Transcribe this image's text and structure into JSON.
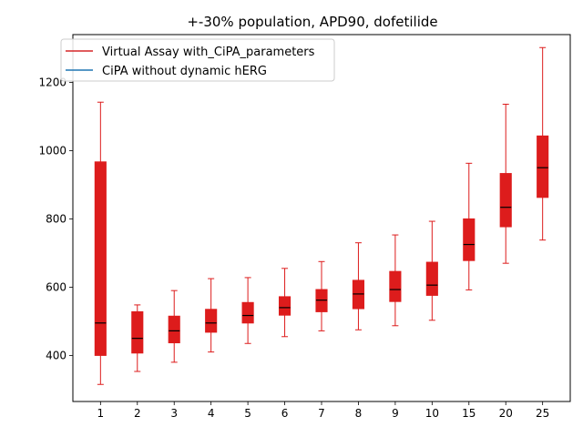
{
  "chart_data": {
    "type": "box",
    "title": "+-30% population, APD90, dofetilide",
    "xlabel": "",
    "ylabel": "",
    "categories": [
      "1",
      "2",
      "3",
      "4",
      "5",
      "6",
      "7",
      "8",
      "9",
      "10",
      "15",
      "20",
      "25"
    ],
    "ylim": [
      265,
      1340
    ],
    "yticks": [
      400,
      600,
      800,
      1000,
      1200
    ],
    "grid": false,
    "legend_position": "top-left",
    "legend": [
      {
        "label": "Virtual Assay with_CiPA_parameters",
        "color": "#d62728"
      },
      {
        "label": "CiPA without dynamic hERG",
        "color": "#1f77b4"
      }
    ],
    "box_color": "#dd1c1c",
    "whisker_color": "#dd1c1c",
    "median_color": "#000000",
    "series": [
      {
        "boxes": [
          {
            "min": 315,
            "q1": 400,
            "median": 495,
            "q3": 967,
            "max": 1142
          },
          {
            "min": 353,
            "q1": 407,
            "median": 450,
            "q3": 528,
            "max": 548
          },
          {
            "min": 380,
            "q1": 437,
            "median": 472,
            "q3": 515,
            "max": 590
          },
          {
            "min": 410,
            "q1": 468,
            "median": 495,
            "q3": 535,
            "max": 625
          },
          {
            "min": 435,
            "q1": 495,
            "median": 517,
            "q3": 555,
            "max": 628
          },
          {
            "min": 455,
            "q1": 518,
            "median": 540,
            "q3": 572,
            "max": 655
          },
          {
            "min": 472,
            "q1": 528,
            "median": 562,
            "q3": 593,
            "max": 675
          },
          {
            "min": 475,
            "q1": 537,
            "median": 580,
            "q3": 620,
            "max": 730
          },
          {
            "min": 487,
            "q1": 558,
            "median": 593,
            "q3": 646,
            "max": 753
          },
          {
            "min": 503,
            "q1": 576,
            "median": 606,
            "q3": 673,
            "max": 793
          },
          {
            "min": 592,
            "q1": 678,
            "median": 725,
            "q3": 800,
            "max": 963
          },
          {
            "min": 670,
            "q1": 777,
            "median": 834,
            "q3": 933,
            "max": 1136
          },
          {
            "min": 738,
            "q1": 863,
            "median": 950,
            "q3": 1043,
            "max": 1302
          }
        ]
      }
    ]
  }
}
